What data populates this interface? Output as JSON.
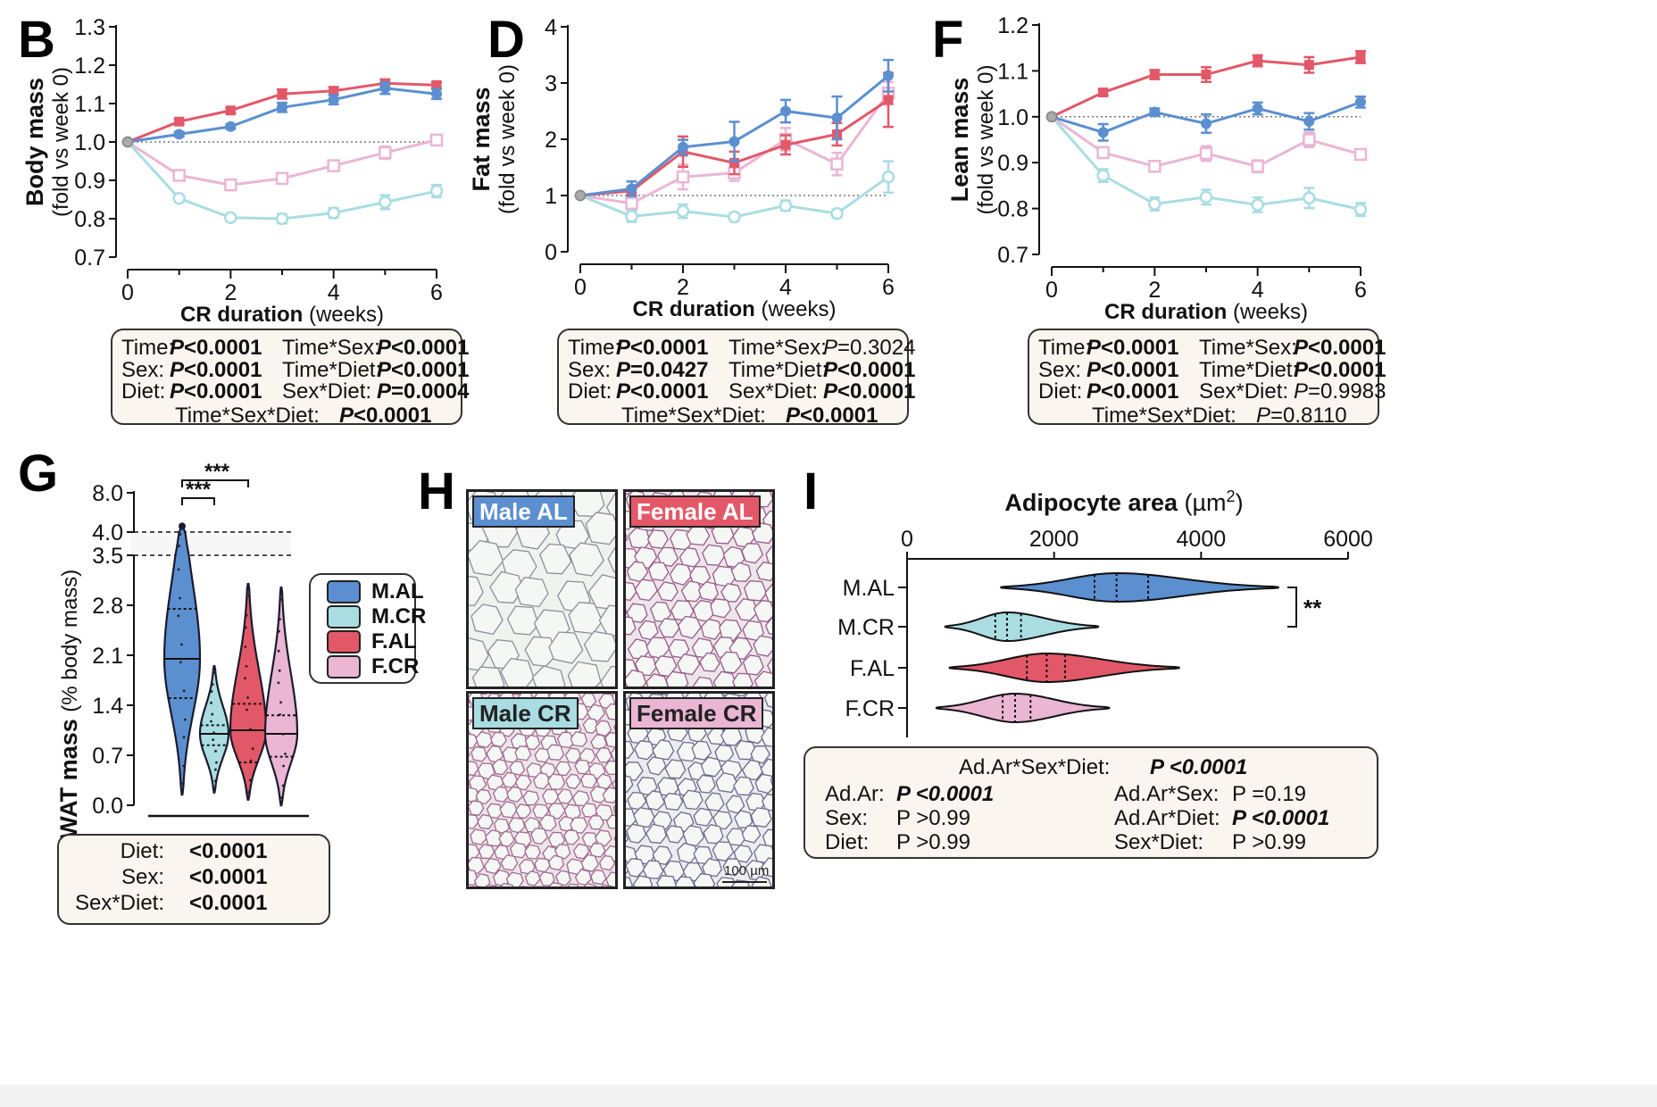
{
  "panels": {
    "B": "B",
    "D": "D",
    "F": "F",
    "G": "G",
    "H": "H",
    "I": "I"
  },
  "colors": {
    "m_al": "#5b8fd0",
    "m_cr": "#a9dde2",
    "f_al": "#e35868",
    "f_cr": "#eab6d4",
    "stat_bg": "#faf6ef",
    "tissue_bg": "#e8f0ec"
  },
  "chart_data": [
    {
      "id": "B",
      "type": "line",
      "title": "",
      "ylabel_bold": "Body mass",
      "ylabel_sub": "(fold vs week 0)",
      "xlabel_bold": "CR duration",
      "xlabel_sub": "(weeks)",
      "ylim": [
        0.7,
        1.3
      ],
      "yticks": [
        "0.7",
        "0.8",
        "0.9",
        "1.0",
        "1.1",
        "1.2",
        "1.3"
      ],
      "xlim": [
        0,
        6
      ],
      "xticks": [
        "0",
        "2",
        "4",
        "6"
      ],
      "reference_y": 1.0,
      "x": [
        0,
        1,
        2,
        3,
        4,
        5,
        6
      ],
      "series": [
        {
          "name": "M.AL",
          "values": [
            1.0,
            1.02,
            1.04,
            1.09,
            1.11,
            1.14,
            1.125
          ],
          "err": [
            0,
            0.006,
            0.006,
            0.012,
            0.012,
            0.015,
            0.013
          ]
        },
        {
          "name": "M.CR",
          "values": [
            1.0,
            0.853,
            0.803,
            0.8,
            0.815,
            0.843,
            0.872
          ],
          "err": [
            0,
            0.008,
            0.008,
            0.012,
            0.013,
            0.018,
            0.016
          ]
        },
        {
          "name": "F.AL",
          "values": [
            1.0,
            1.053,
            1.082,
            1.125,
            1.133,
            1.153,
            1.148
          ],
          "err": [
            0,
            0.006,
            0.006,
            0.012,
            0.01,
            0.01,
            0.008
          ]
        },
        {
          "name": "F.CR",
          "values": [
            1.0,
            0.913,
            0.888,
            0.905,
            0.938,
            0.972,
            1.005
          ],
          "err": [
            0,
            0.008,
            0.008,
            0.01,
            0.01,
            0.016,
            0.012
          ]
        }
      ],
      "stats": {
        "rows": [
          [
            "Time:",
            "P<0.0001",
            "Time*Sex:",
            "P<0.0001"
          ],
          [
            "Sex:",
            "P<0.0001",
            "Time*Diet:",
            "P<0.0001"
          ],
          [
            "Diet:",
            "P<0.0001",
            "Sex*Diet:",
            "P=0.0004"
          ]
        ],
        "bold": [
          [
            true,
            true
          ],
          [
            true,
            true
          ],
          [
            true,
            true
          ]
        ],
        "last_label": "Time*Sex*Diet:",
        "last_value": "P<0.0001",
        "last_bold": true
      }
    },
    {
      "id": "D",
      "type": "line",
      "title": "",
      "ylabel_bold": "Fat mass",
      "ylabel_sub": "(fold vs week 0)",
      "xlabel_bold": "CR duration",
      "xlabel_sub": "(weeks)",
      "ylim": [
        0,
        4
      ],
      "yticks": [
        "0",
        "1",
        "2",
        "3",
        "4"
      ],
      "xlim": [
        0,
        6
      ],
      "xticks": [
        "0",
        "2",
        "4",
        "6"
      ],
      "reference_y": 1.0,
      "x": [
        0,
        1,
        2,
        3,
        4,
        5,
        6
      ],
      "series": [
        {
          "name": "M.AL",
          "values": [
            1.0,
            1.12,
            1.86,
            1.96,
            2.5,
            2.38,
            3.13
          ],
          "err": [
            0,
            0.13,
            0.13,
            0.35,
            0.2,
            0.38,
            0.28
          ]
        },
        {
          "name": "M.CR",
          "values": [
            1.0,
            0.63,
            0.72,
            0.62,
            0.82,
            0.68,
            1.33
          ],
          "err": [
            0,
            0.1,
            0.12,
            0.07,
            0.09,
            0.07,
            0.28
          ]
        },
        {
          "name": "F.AL",
          "values": [
            1.0,
            1.08,
            1.78,
            1.58,
            1.9,
            2.09,
            2.7
          ],
          "err": [
            0,
            0.07,
            0.27,
            0.2,
            0.17,
            0.2,
            0.48
          ]
        },
        {
          "name": "F.CR",
          "values": [
            1.0,
            0.86,
            1.33,
            1.4,
            2.0,
            1.56,
            2.82
          ],
          "err": [
            0,
            0.06,
            0.22,
            0.14,
            0.2,
            0.2,
            0.2
          ]
        }
      ],
      "stats": {
        "rows": [
          [
            "Time:",
            "P<0.0001",
            "Time*Sex:",
            "P=0.3024"
          ],
          [
            "Sex:",
            "P=0.0427",
            "Time*Diet:",
            "P<0.0001"
          ],
          [
            "Diet:",
            "P<0.0001",
            "Sex*Diet:",
            "P<0.0001"
          ]
        ],
        "bold": [
          [
            true,
            false
          ],
          [
            true,
            true
          ],
          [
            true,
            true
          ]
        ],
        "last_label": "Time*Sex*Diet:",
        "last_value": "P<0.0001",
        "last_bold": true
      }
    },
    {
      "id": "F",
      "type": "line",
      "title": "",
      "ylabel_bold": "Lean mass",
      "ylabel_sub": "(fold vs week 0)",
      "xlabel_bold": "CR duration",
      "xlabel_sub": "(weeks)",
      "ylim": [
        0.7,
        1.2
      ],
      "yticks": [
        "0.7",
        "0.8",
        "0.9",
        "1.0",
        "1.1",
        "1.2"
      ],
      "xlim": [
        0,
        6
      ],
      "xticks": [
        "0",
        "2",
        "4",
        "6"
      ],
      "reference_y": 1.0,
      "x": [
        0,
        1,
        2,
        3,
        4,
        5,
        6
      ],
      "series": [
        {
          "name": "M.AL",
          "values": [
            1.0,
            0.966,
            1.01,
            0.985,
            1.018,
            0.99,
            1.032
          ],
          "err": [
            0,
            0.018,
            0.008,
            0.02,
            0.013,
            0.018,
            0.012
          ]
        },
        {
          "name": "M.CR",
          "values": [
            1.0,
            0.872,
            0.81,
            0.825,
            0.808,
            0.823,
            0.798
          ],
          "err": [
            0,
            0.014,
            0.014,
            0.016,
            0.016,
            0.022,
            0.014
          ]
        },
        {
          "name": "F.AL",
          "values": [
            1.0,
            1.053,
            1.092,
            1.092,
            1.122,
            1.113,
            1.13
          ],
          "err": [
            0,
            0.006,
            0.01,
            0.016,
            0.012,
            0.017,
            0.013
          ]
        },
        {
          "name": "F.CR",
          "values": [
            1.0,
            0.922,
            0.892,
            0.92,
            0.892,
            0.95,
            0.918
          ],
          "err": [
            0,
            0.012,
            0.008,
            0.016,
            0.013,
            0.016,
            0.01
          ]
        }
      ],
      "stats": {
        "rows": [
          [
            "Time:",
            "P<0.0001",
            "Time*Sex:",
            "P<0.0001"
          ],
          [
            "Sex:",
            "P<0.0001",
            "Time*Diet:",
            "P<0.0001"
          ],
          [
            "Diet:",
            "P<0.0001",
            "Sex*Diet:",
            "P=0.9983"
          ]
        ],
        "bold": [
          [
            true,
            true
          ],
          [
            true,
            true
          ],
          [
            true,
            false
          ]
        ],
        "last_label": "Time*Sex*Diet:",
        "last_value": "P=0.8110",
        "last_bold": false
      }
    },
    {
      "id": "G",
      "type": "violin",
      "ylabel_bold": "gWAT mass",
      "ylabel_sub": "(% body mass)",
      "yticks_lower": [
        "0.0",
        "0.7",
        "1.4",
        "2.1",
        "2.8",
        "3.5"
      ],
      "yticks_upper": [
        "4.0",
        "8.0"
      ],
      "ylim_lower": [
        0,
        3.5
      ],
      "ylim_upper": [
        4,
        8
      ],
      "groups": [
        "M.AL",
        "M.CR",
        "F.AL",
        "F.CR"
      ],
      "min": [
        0.15,
        0.18,
        0.08,
        0.0
      ],
      "max": [
        4.6,
        1.95,
        3.1,
        3.05
      ],
      "median": [
        2.05,
        1.0,
        1.05,
        1.0
      ],
      "q1": [
        1.5,
        0.84,
        0.6,
        0.68
      ],
      "q3": [
        2.75,
        1.12,
        1.42,
        1.26
      ],
      "significance": [
        {
          "label": "***",
          "from": "M.AL",
          "to": "M.CR"
        },
        {
          "label": "***",
          "from": "M.AL",
          "to": "F.AL"
        }
      ],
      "legend": [
        "M.AL",
        "M.CR",
        "F.AL",
        "F.CR"
      ],
      "stats": [
        {
          "label": "Diet:",
          "value": "<0.0001"
        },
        {
          "label": "Sex:",
          "value": "<0.0001"
        },
        {
          "label": "Sex*Diet:",
          "value": "<0.0001"
        }
      ]
    },
    {
      "id": "I",
      "type": "violin",
      "orientation": "horizontal",
      "title_bold": "Adipocyte area",
      "title_unit": "(µm",
      "title_sup": "2",
      "title_close": ")",
      "xlim": [
        0,
        6000
      ],
      "xticks": [
        "0",
        "2000",
        "4000",
        "6000"
      ],
      "groups": [
        "M.AL",
        "M.CR",
        "F.AL",
        "F.CR"
      ],
      "min": [
        1280,
        520,
        580,
        400
      ],
      "max": [
        5050,
        2600,
        3700,
        2750
      ],
      "median": [
        2850,
        1360,
        1900,
        1470
      ],
      "q1": [
        2550,
        1200,
        1630,
        1300
      ],
      "q3": [
        3280,
        1550,
        2150,
        1680
      ],
      "significance": [
        {
          "label": "**",
          "from": "M.AL",
          "to": "M.CR"
        }
      ],
      "stats": {
        "header_label": "Ad.Ar*Sex*Diet:",
        "header_value": "P <0.0001",
        "left": [
          {
            "label": "Ad.Ar:",
            "value": "P <0.0001",
            "bold": true
          },
          {
            "label": "Sex:",
            "value": "P >0.99",
            "bold": false
          },
          {
            "label": "Diet:",
            "value": "P >0.99",
            "bold": false
          }
        ],
        "right": [
          {
            "label": "Ad.Ar*Sex:",
            "value": "P =0.19",
            "bold": false
          },
          {
            "label": "Ad.Ar*Diet:",
            "value": "P <0.0001",
            "bold": true
          },
          {
            "label": "Sex*Diet:",
            "value": "P >0.99",
            "bold": false
          }
        ]
      }
    }
  ],
  "histology": {
    "tiles": [
      {
        "label": "Male AL",
        "label_color": "#5b8fd0",
        "text_color": "#ffffff"
      },
      {
        "label": "Female AL",
        "label_color": "#e35868",
        "text_color": "#ffffff"
      },
      {
        "label": "Male CR",
        "label_color": "#a9dde2",
        "text_color": "#222222"
      },
      {
        "label": "Female CR",
        "label_color": "#eab6d4",
        "text_color": "#222222"
      }
    ],
    "scale_label": "100 µm"
  }
}
